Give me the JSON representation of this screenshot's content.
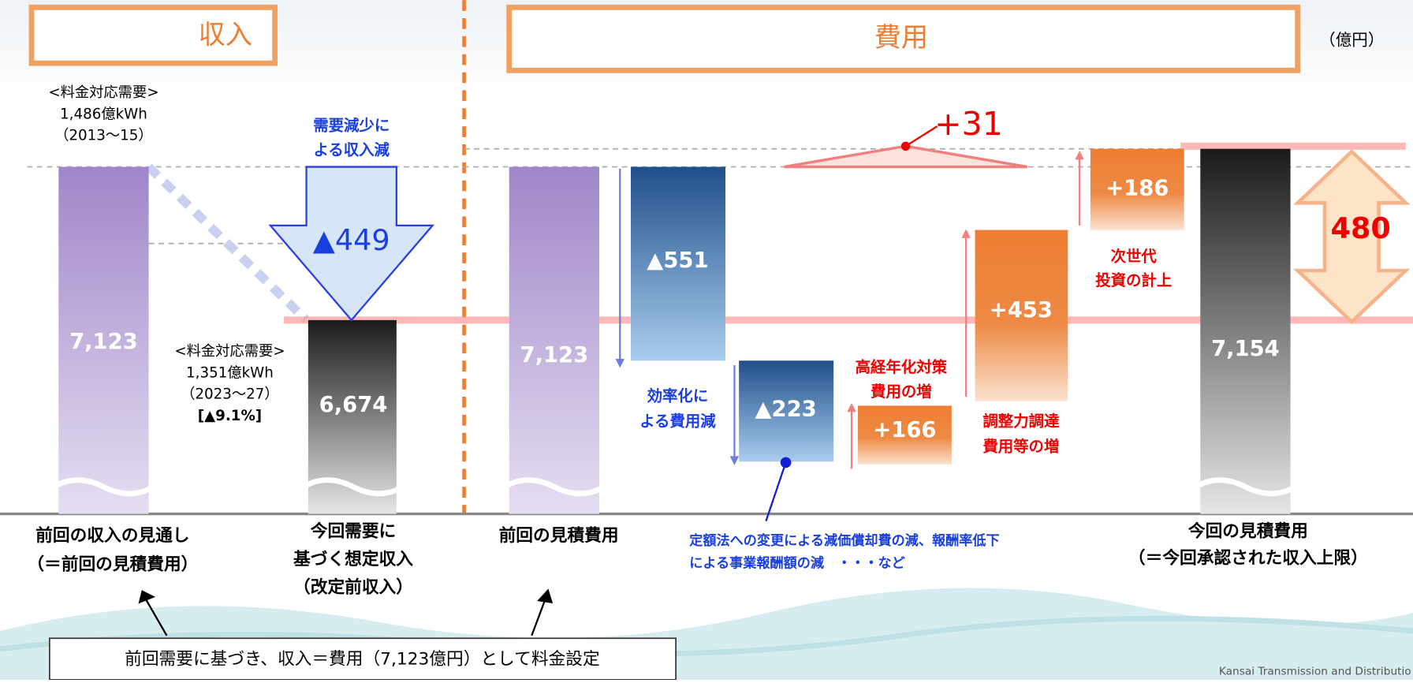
{
  "headers": {
    "income": "収入",
    "cost": "費用",
    "unit": "（億円）"
  },
  "demand_prev": [
    "<料金対応需要>",
    "1,486億kWh",
    "（2013～15）"
  ],
  "demand_new": [
    "<料金対応需要>",
    "1,351億kWh",
    "（2023～27）",
    "[▲9.1%]"
  ],
  "decrease": {
    "lines": [
      "需要減少に",
      "よる収入減"
    ],
    "value": "▲449"
  },
  "bars": {
    "prev_income": "7,123",
    "assumed_income": "6,674",
    "prev_cost": "7,123",
    "efficiency": "▲551",
    "depreciation": "▲223",
    "aging": "+166",
    "balancing": "+453",
    "next_gen": "+186",
    "new_cost": "7,154"
  },
  "gap": "+31",
  "shortfall": "480",
  "notes": {
    "efficiency": [
      "効率化に",
      "よる費用減"
    ],
    "aging": [
      "高経年化対策",
      "費用の増"
    ],
    "balancing": [
      "調整力調達",
      "費用等の増"
    ],
    "next_gen": [
      "次世代",
      "投資の計上"
    ]
  },
  "callout": [
    "定額法への変更による減価償却費の減、報酬率低下",
    "による事業報酬額の減　・・・など"
  ],
  "x_labels": {
    "prev_income": [
      "前回の収入の見通し",
      "（＝前回の見積費用）"
    ],
    "assumed_income": [
      "今回需要に",
      "基づく想定収入",
      "（改定前収入）"
    ],
    "prev_cost": [
      "前回の見積費用"
    ],
    "new_cost": [
      "今回の見積費用",
      "（＝今回承認された収入上限）"
    ]
  },
  "footnote": "前回需要に基づき、収入＝費用（7,123億円）として料金設定",
  "company": "Kansai Transmission and Distributio"
}
